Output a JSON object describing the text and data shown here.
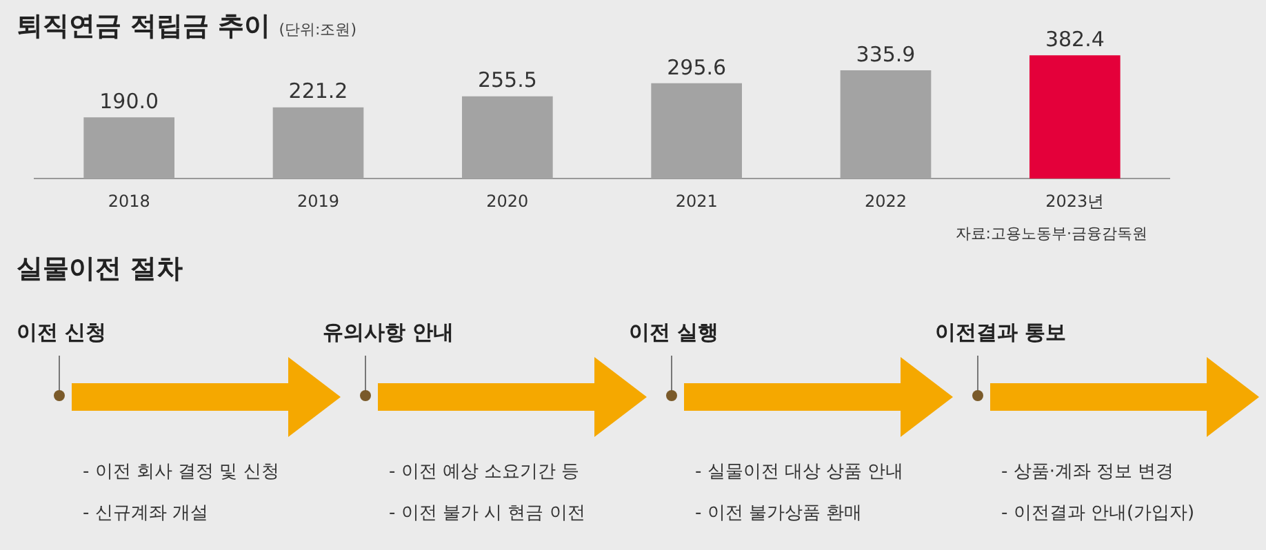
{
  "chart_data": [
    {
      "type": "bar",
      "title": "퇴직연금 적립금 추이",
      "subtitle": "(단위:조원)",
      "categories": [
        "2018",
        "2019",
        "2020",
        "2021",
        "2022",
        "2023년"
      ],
      "values": [
        190.0,
        221.2,
        255.5,
        295.6,
        335.9,
        382.4
      ],
      "colors": [
        "#a3a3a3",
        "#a3a3a3",
        "#a3a3a3",
        "#a3a3a3",
        "#a3a3a3",
        "#e4003a"
      ],
      "value_labels": [
        "190.0",
        "221.2",
        "255.5",
        "295.6",
        "335.9",
        "382.4"
      ],
      "grid": false,
      "legend": false,
      "tick_labels": "x",
      "annotations": [
        "자료:고용노동부·금융감독원"
      ]
    },
    {
      "type": "other",
      "title": "실물이전 절차",
      "categories": [
        "이전 신청",
        "유의사항 안내",
        "이전 실행",
        "이전결과 통보"
      ],
      "annotations": [
        "- 이전 회사 결정 및 신청",
        "- 신규계좌 개설",
        "- 이전 예상 소요기간 등",
        "- 이전 불가 시 현금 이전",
        "- 실물이전 대상 상품 안내",
        "- 이전 불가상품 환매",
        "- 상품·계좌 정보 변경",
        "- 이전결과 안내(가입자)"
      ]
    }
  ]
}
